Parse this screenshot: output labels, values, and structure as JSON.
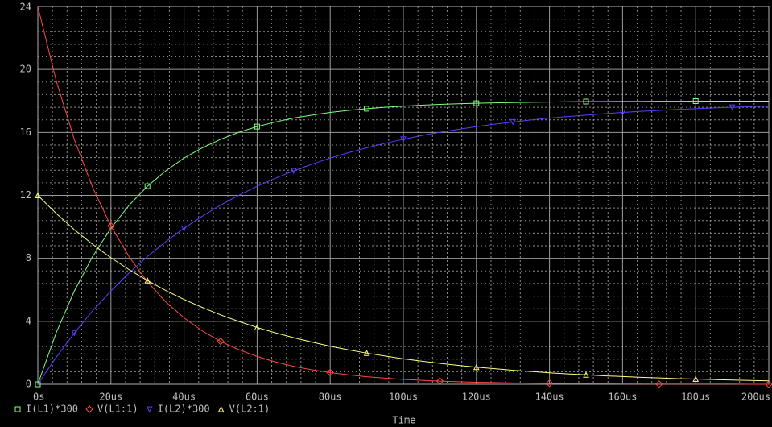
{
  "chart_data": {
    "type": "line",
    "x_label": "Time",
    "x": [
      0,
      5,
      10,
      15,
      20,
      25,
      30,
      35,
      40,
      45,
      50,
      55,
      60,
      65,
      70,
      75,
      80,
      85,
      90,
      95,
      100,
      105,
      110,
      115,
      120,
      125,
      130,
      135,
      140,
      145,
      150,
      155,
      160,
      165,
      170,
      175,
      180,
      185,
      190,
      195,
      200
    ],
    "xlim": [
      0,
      200
    ],
    "xticks": [
      {
        "value": 0,
        "label": "0s"
      },
      {
        "value": 20,
        "label": "20us"
      },
      {
        "value": 40,
        "label": "40us"
      },
      {
        "value": 60,
        "label": "60us"
      },
      {
        "value": 80,
        "label": "80us"
      },
      {
        "value": 100,
        "label": "100us"
      },
      {
        "value": 120,
        "label": "120us"
      },
      {
        "value": 140,
        "label": "140us"
      },
      {
        "value": 160,
        "label": "160us"
      },
      {
        "value": 180,
        "label": "180us"
      },
      {
        "value": 200,
        "label": "200us"
      }
    ],
    "ylim": [
      0,
      24
    ],
    "yticks": [
      0,
      4,
      8,
      12,
      16,
      20,
      24
    ],
    "grid": true,
    "legend": "bottom",
    "series": [
      {
        "name": "I(L1)*300",
        "color": "#80ff80",
        "marker": "square",
        "values": [
          0,
          3.26,
          5.93,
          8.12,
          9.91,
          11.38,
          12.58,
          13.56,
          14.37,
          15.02,
          15.56,
          16.01,
          16.37,
          16.66,
          16.91,
          17.1,
          17.27,
          17.4,
          17.51,
          17.6,
          17.67,
          17.73,
          17.78,
          17.82,
          17.85,
          17.88,
          17.9,
          17.92,
          17.93,
          17.95,
          17.96,
          17.96,
          17.97,
          17.97,
          17.98,
          17.98,
          17.99,
          17.99,
          17.99,
          17.99,
          17.99
        ]
      },
      {
        "name": "V(L1:1)",
        "color": "#ff4848",
        "marker": "diamond",
        "values": [
          24,
          19.31,
          15.54,
          12.5,
          10.06,
          8.09,
          6.51,
          5.24,
          4.22,
          3.39,
          2.73,
          2.2,
          1.77,
          1.42,
          1.14,
          0.92,
          0.74,
          0.6,
          0.48,
          0.39,
          0.31,
          0.25,
          0.2,
          0.16,
          0.13,
          0.11,
          0.08,
          0.07,
          0.06,
          0.04,
          0.04,
          0.03,
          0.02,
          0.02,
          0.01,
          0.01,
          0.01,
          0.01,
          0.01,
          0,
          0
        ]
      },
      {
        "name": "I(L2)*300",
        "color": "#5a40ff",
        "marker": "triangle-down",
        "values": [
          0,
          1.71,
          3.26,
          4.67,
          5.93,
          7.08,
          8.12,
          9.06,
          9.91,
          10.68,
          11.38,
          12.01,
          12.58,
          13.09,
          13.56,
          13.98,
          14.37,
          14.71,
          15.02,
          15.31,
          15.56,
          15.8,
          16.01,
          16.19,
          16.37,
          16.52,
          16.66,
          16.79,
          16.91,
          17.01,
          17.1,
          17.19,
          17.27,
          17.34,
          17.4,
          17.46,
          17.51,
          17.56,
          17.6,
          17.64,
          17.67
        ]
      },
      {
        "name": "V(L2:1)",
        "color": "#ffff80",
        "marker": "triangle-up",
        "values": [
          12,
          10.86,
          9.82,
          8.89,
          8.04,
          7.28,
          6.59,
          5.96,
          5.39,
          4.88,
          4.41,
          3.99,
          3.61,
          3.27,
          2.96,
          2.68,
          2.42,
          2.19,
          1.98,
          1.8,
          1.62,
          1.47,
          1.33,
          1.2,
          1.09,
          0.99,
          0.89,
          0.81,
          0.73,
          0.66,
          0.6,
          0.54,
          0.49,
          0.44,
          0.4,
          0.36,
          0.33,
          0.3,
          0.27,
          0.24,
          0.22
        ]
      }
    ]
  }
}
